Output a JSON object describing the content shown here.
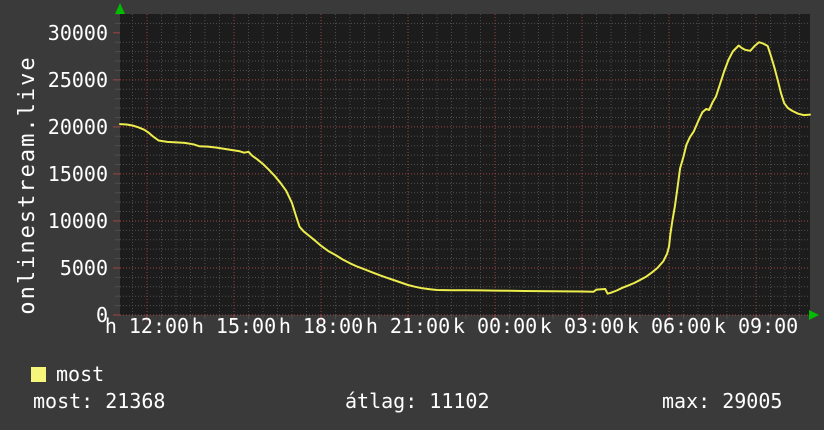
{
  "vertical_label": "onlinestream.live",
  "colors": {
    "background": "#3a3a3a",
    "canvas": "#1c1c1c",
    "grid_minor": "#4e4e4e",
    "grid_major": "#a04444",
    "text": "#ffffff",
    "line": "#eded4e",
    "swatch": "#f6f67a",
    "arrow": "#00bb00"
  },
  "legend": {
    "series_label": "most"
  },
  "footer": {
    "most": "most: 21368",
    "atlag": "átlag: 11102",
    "max": "max: 29005"
  },
  "chart_data": {
    "type": "line",
    "title": "onlinestream.live",
    "ylabel": "onlinestream.live",
    "xlabel": "",
    "grid": true,
    "legend_position": "bottom-left",
    "x_axis": {
      "unit": "hours since Monday 00:00 (h = hétfő/Mon, k = kedd/Tue)",
      "range_hours": [
        11.07,
        34.86
      ],
      "minor_step_hours": 0.5,
      "major_step_hours": 3,
      "major_ticks": [
        {
          "h": 12,
          "label": "h 12:00"
        },
        {
          "h": 15,
          "label": "h 15:00"
        },
        {
          "h": 18,
          "label": "h 18:00"
        },
        {
          "h": 21,
          "label": "h 21:00"
        },
        {
          "h": 24,
          "label": "k 00:00"
        },
        {
          "h": 27,
          "label": "k 03:00"
        },
        {
          "h": 30,
          "label": "k 06:00"
        },
        {
          "h": 33,
          "label": "k 09:00"
        }
      ]
    },
    "y_axis": {
      "range": [
        0,
        32000
      ],
      "minor_step": 1000,
      "major_step": 5000,
      "ticks": [
        {
          "v": 0,
          "label": "0"
        },
        {
          "v": 5000,
          "label": "5000"
        },
        {
          "v": 10000,
          "label": "10000"
        },
        {
          "v": 15000,
          "label": "15000"
        },
        {
          "v": 20000,
          "label": "20000"
        },
        {
          "v": 25000,
          "label": "25000"
        },
        {
          "v": 30000,
          "label": "30000"
        }
      ]
    },
    "series": [
      {
        "name": "most",
        "color": "#eded4e",
        "points": [
          [
            11.07,
            20300
          ],
          [
            11.3,
            20250
          ],
          [
            11.5,
            20150
          ],
          [
            11.7,
            19950
          ],
          [
            11.9,
            19700
          ],
          [
            12.05,
            19400
          ],
          [
            12.2,
            19000
          ],
          [
            12.4,
            18550
          ],
          [
            12.7,
            18400
          ],
          [
            13.0,
            18350
          ],
          [
            13.3,
            18300
          ],
          [
            13.6,
            18150
          ],
          [
            13.8,
            17950
          ],
          [
            14.1,
            17900
          ],
          [
            14.4,
            17800
          ],
          [
            14.7,
            17650
          ],
          [
            15.0,
            17500
          ],
          [
            15.2,
            17400
          ],
          [
            15.35,
            17250
          ],
          [
            15.5,
            17350
          ],
          [
            15.62,
            16950
          ],
          [
            15.8,
            16550
          ],
          [
            16.0,
            16050
          ],
          [
            16.2,
            15450
          ],
          [
            16.4,
            14800
          ],
          [
            16.6,
            14050
          ],
          [
            16.8,
            13200
          ],
          [
            17.0,
            11900
          ],
          [
            17.13,
            10600
          ],
          [
            17.26,
            9400
          ],
          [
            17.4,
            8900
          ],
          [
            17.6,
            8400
          ],
          [
            17.8,
            7900
          ],
          [
            18.0,
            7370
          ],
          [
            18.25,
            6800
          ],
          [
            18.5,
            6380
          ],
          [
            18.75,
            5900
          ],
          [
            19.0,
            5500
          ],
          [
            19.25,
            5150
          ],
          [
            19.5,
            4860
          ],
          [
            19.75,
            4550
          ],
          [
            20.0,
            4260
          ],
          [
            20.25,
            3980
          ],
          [
            20.5,
            3720
          ],
          [
            20.75,
            3450
          ],
          [
            21.0,
            3190
          ],
          [
            21.25,
            3000
          ],
          [
            21.5,
            2840
          ],
          [
            21.75,
            2740
          ],
          [
            22.0,
            2660
          ],
          [
            22.5,
            2640
          ],
          [
            23.0,
            2630
          ],
          [
            23.5,
            2610
          ],
          [
            24.0,
            2590
          ],
          [
            24.5,
            2570
          ],
          [
            25.0,
            2550
          ],
          [
            25.5,
            2540
          ],
          [
            26.0,
            2520
          ],
          [
            26.5,
            2510
          ],
          [
            27.0,
            2500
          ],
          [
            27.4,
            2480
          ],
          [
            27.5,
            2700
          ],
          [
            27.8,
            2760
          ],
          [
            27.88,
            2260
          ],
          [
            28.0,
            2370
          ],
          [
            28.2,
            2600
          ],
          [
            28.4,
            2900
          ],
          [
            28.6,
            3150
          ],
          [
            28.8,
            3400
          ],
          [
            29.0,
            3720
          ],
          [
            29.2,
            4050
          ],
          [
            29.4,
            4500
          ],
          [
            29.6,
            5000
          ],
          [
            29.8,
            5700
          ],
          [
            29.93,
            6500
          ],
          [
            30.0,
            7270
          ],
          [
            30.05,
            8700
          ],
          [
            30.12,
            10100
          ],
          [
            30.2,
            11500
          ],
          [
            30.28,
            13300
          ],
          [
            30.38,
            15600
          ],
          [
            30.5,
            16840
          ],
          [
            30.6,
            18090
          ],
          [
            30.72,
            18900
          ],
          [
            30.85,
            19500
          ],
          [
            31.0,
            20560
          ],
          [
            31.15,
            21560
          ],
          [
            31.28,
            21900
          ],
          [
            31.38,
            21800
          ],
          [
            31.5,
            22600
          ],
          [
            31.62,
            23230
          ],
          [
            31.75,
            24470
          ],
          [
            31.9,
            25890
          ],
          [
            32.05,
            27130
          ],
          [
            32.2,
            28010
          ],
          [
            32.4,
            28650
          ],
          [
            32.5,
            28400
          ],
          [
            32.62,
            28190
          ],
          [
            32.8,
            28090
          ],
          [
            32.95,
            28600
          ],
          [
            33.1,
            29005
          ],
          [
            33.25,
            28850
          ],
          [
            33.4,
            28600
          ],
          [
            33.52,
            27480
          ],
          [
            33.64,
            26240
          ],
          [
            33.76,
            24820
          ],
          [
            33.86,
            23580
          ],
          [
            33.97,
            22520
          ],
          [
            34.1,
            22000
          ],
          [
            34.25,
            21700
          ],
          [
            34.45,
            21400
          ],
          [
            34.65,
            21250
          ],
          [
            34.86,
            21300
          ]
        ]
      }
    ],
    "stats": {
      "most": 21368,
      "atlag": 11102,
      "max": 29005
    }
  }
}
